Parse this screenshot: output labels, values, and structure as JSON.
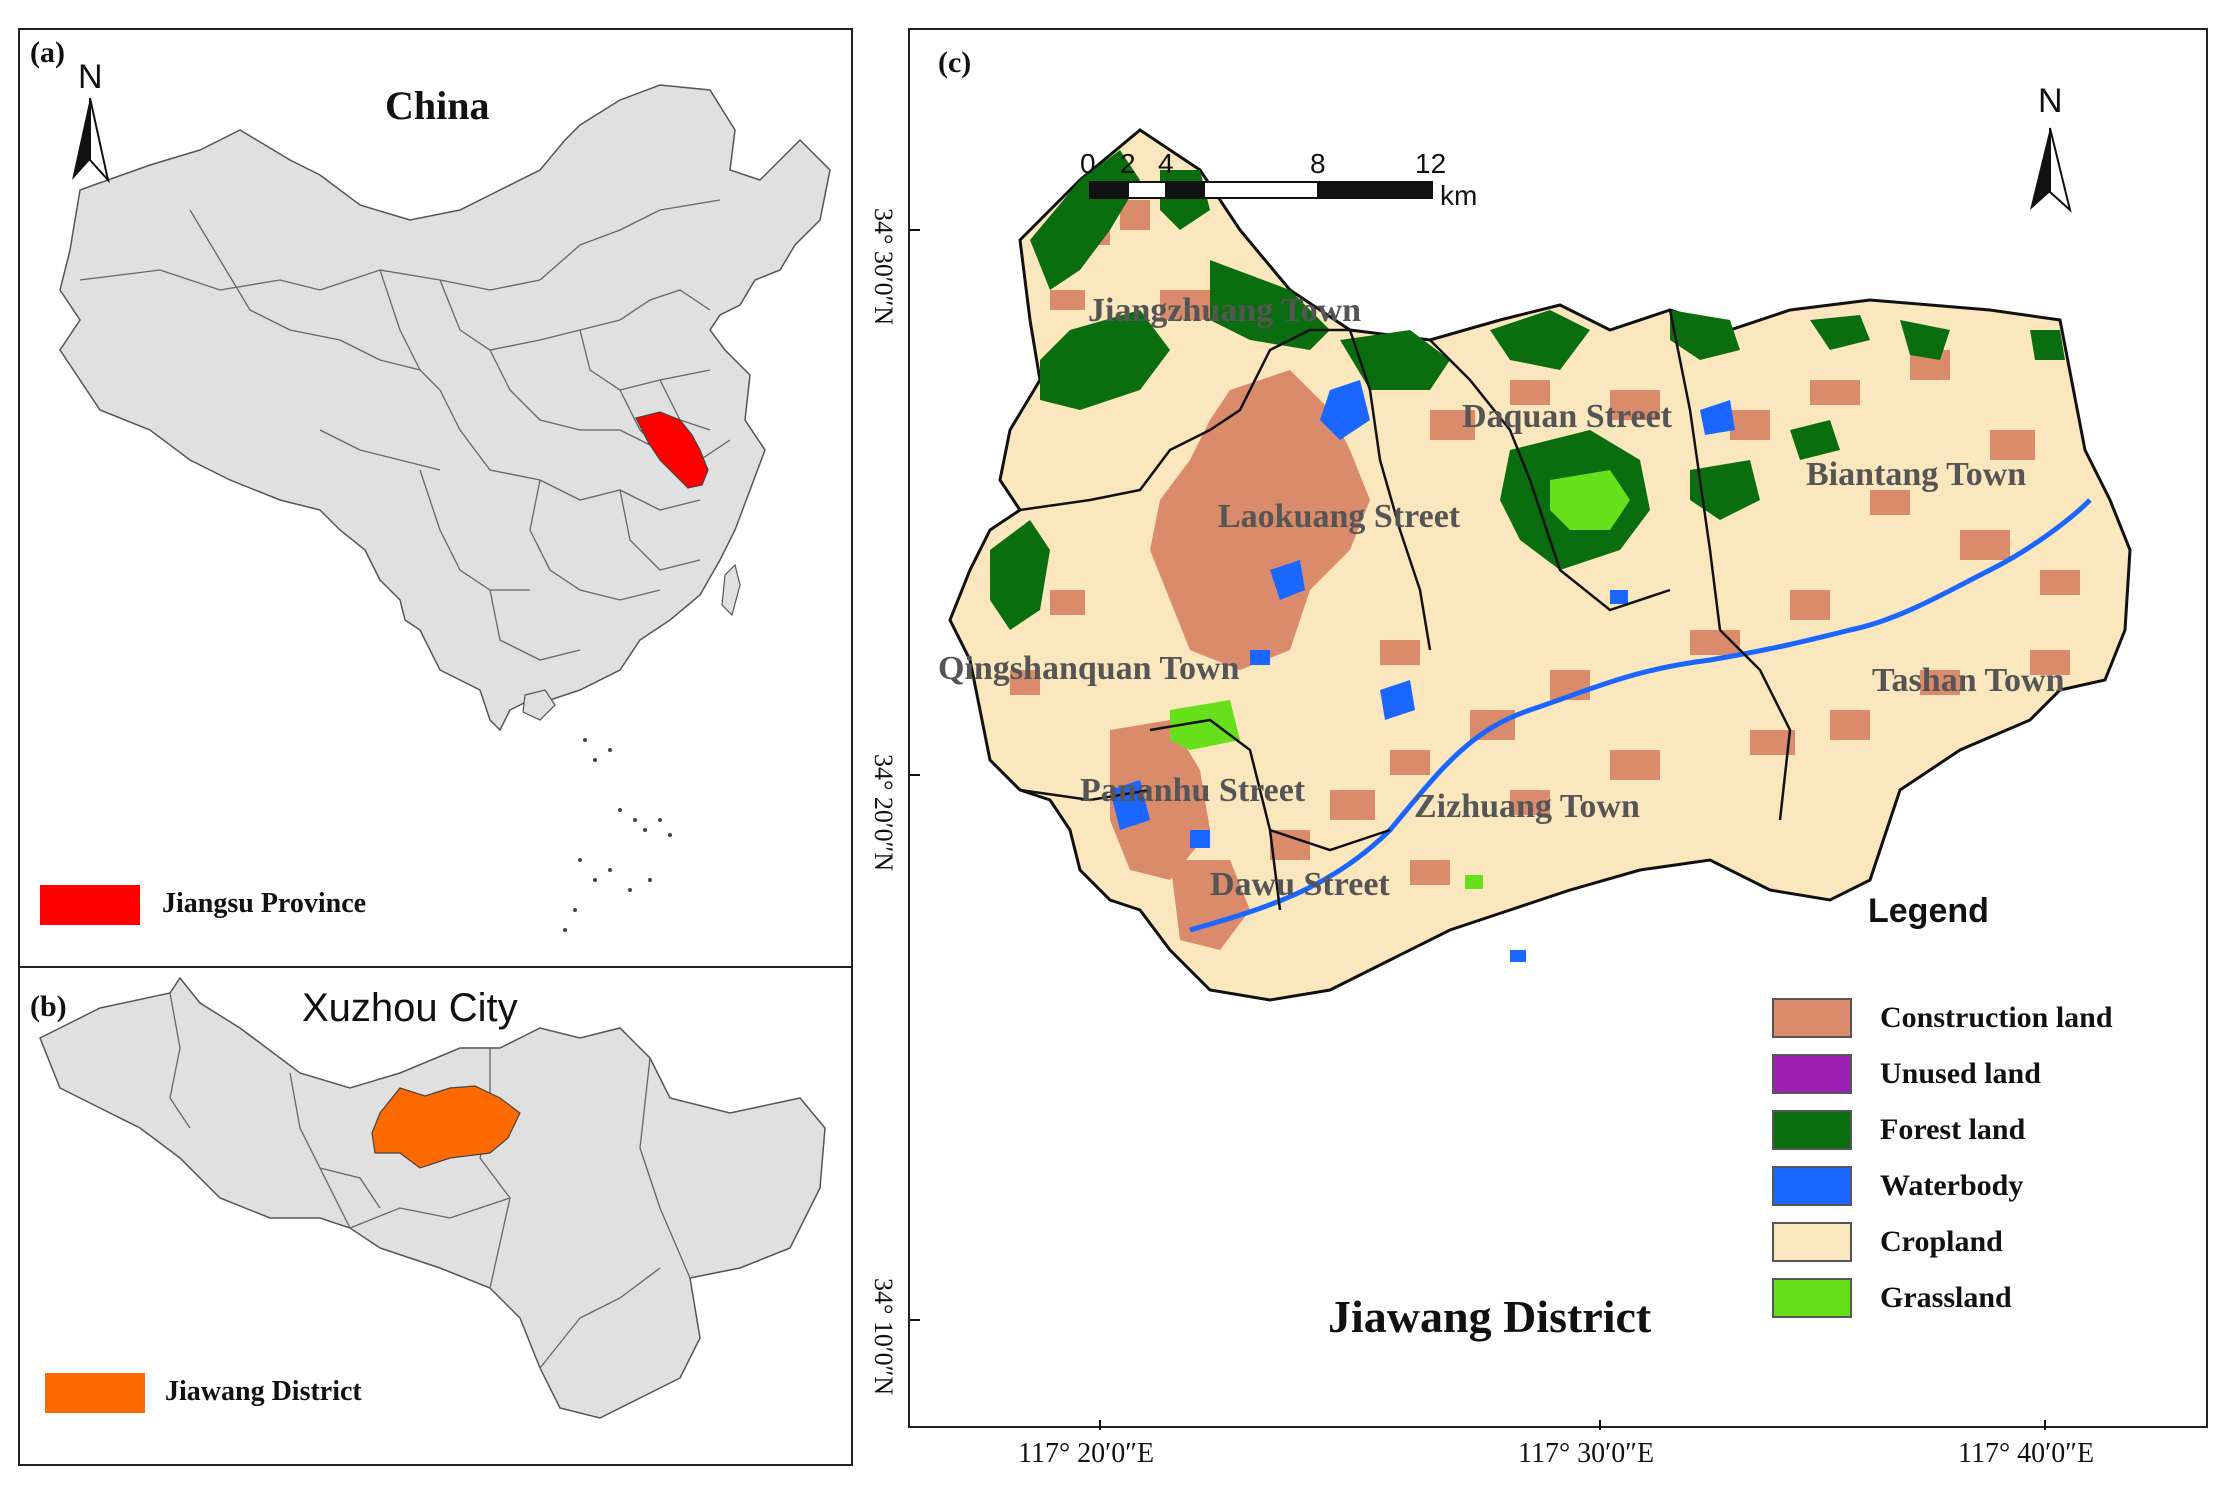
{
  "panel_a": {
    "label": "(a)",
    "title": "China",
    "north_label": "N",
    "legend": {
      "label": "Jiangsu Province",
      "color": "#ff0000"
    },
    "fill_color": "#e0e0e0"
  },
  "panel_b": {
    "label": "(b)",
    "title": "Xuzhou City",
    "legend": {
      "label": "Jiawang District",
      "color": "#ff6a00"
    },
    "fill_color": "#e0e0e0"
  },
  "panel_c": {
    "label": "(c)",
    "north_label": "N",
    "district_title": "Jiawang District",
    "scale": {
      "ticks": [
        "0",
        "2",
        "4",
        "8",
        "12"
      ],
      "unit": "km"
    },
    "legend_title": "Legend",
    "legend": [
      {
        "label": "Construction land",
        "color": "#d98b6b"
      },
      {
        "label": "Unused land",
        "color": "#9b1fb0"
      },
      {
        "label": "Forest land",
        "color": "#0a6e10"
      },
      {
        "label": "Waterbody",
        "color": "#1a66ff"
      },
      {
        "label": "Cropland",
        "color": "#fbe7bd"
      },
      {
        "label": "Grassland",
        "color": "#66e01a"
      }
    ],
    "towns": [
      "Jiangzhuang Town",
      "Daquan Street",
      "Biantang Town",
      "Laokuang Street",
      "Qingshanquan Town",
      "Tashan Town",
      "Pananhu Street",
      "Zizhuang Town",
      "Dawu Street"
    ],
    "lat_ticks": [
      "34° 30′0″N",
      "34° 20′0″N",
      "34° 10′0″N"
    ],
    "lon_ticks": [
      "117° 20′0″E",
      "117° 30′0″E",
      "117° 40′0″E"
    ]
  }
}
